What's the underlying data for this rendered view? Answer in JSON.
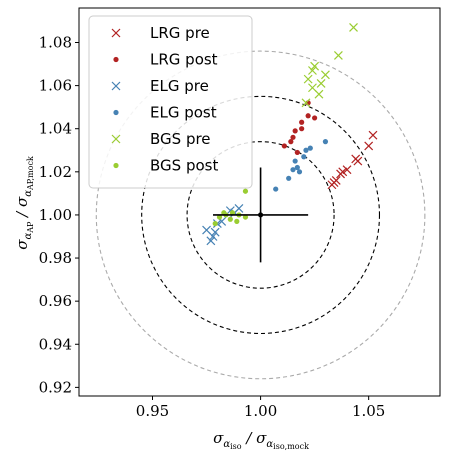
{
  "chart_data": {
    "type": "scatter",
    "xlabel": "σ_αiso / σ_αiso,mock",
    "ylabel": "σ_αAP / σ_αAP,mock",
    "xlim": [
      0.916,
      1.083
    ],
    "ylim": [
      0.916,
      1.096
    ],
    "xticks": [
      0.95,
      1.0,
      1.05
    ],
    "xtick_labels": [
      "0.95",
      "1.00",
      "1.05"
    ],
    "yticks": [
      0.92,
      0.94,
      0.96,
      0.98,
      1.0,
      1.02,
      1.04,
      1.06,
      1.08
    ],
    "ytick_labels": [
      "0.92",
      "0.94",
      "0.96",
      "0.98",
      "1.00",
      "1.02",
      "1.04",
      "1.06",
      "1.08"
    ],
    "grid": false,
    "legend_position": "top-left",
    "circles": {
      "center": [
        1.0,
        1.0
      ],
      "radii_x": [
        0.034,
        0.055,
        0.076
      ],
      "radii_y": [
        0.034,
        0.055,
        0.076
      ],
      "style": "dashed",
      "colors": [
        "#000000",
        "#000000",
        "#aaaaaa"
      ]
    },
    "errorbar": {
      "x": 1.0,
      "y": 1.0,
      "xerr": 0.022,
      "yerr": 0.022,
      "color": "#000000"
    },
    "series": [
      {
        "name": "LRG pre",
        "marker": "x",
        "color": "#b22222",
        "points": [
          [
            1.052,
            1.037
          ],
          [
            1.05,
            1.032
          ],
          [
            1.045,
            1.025
          ],
          [
            1.044,
            1.026
          ],
          [
            1.04,
            1.021
          ],
          [
            1.037,
            1.019
          ],
          [
            1.035,
            1.016
          ],
          [
            1.033,
            1.014
          ],
          [
            1.034,
            1.015
          ],
          [
            1.038,
            1.02
          ]
        ]
      },
      {
        "name": "LRG post",
        "marker": "dot",
        "color": "#b22222",
        "points": [
          [
            1.016,
            1.039
          ],
          [
            1.015,
            1.036
          ],
          [
            1.014,
            1.034
          ],
          [
            1.019,
            1.04
          ],
          [
            1.019,
            1.043
          ],
          [
            1.022,
            1.046
          ],
          [
            1.025,
            1.045
          ],
          [
            1.022,
            1.052
          ],
          [
            1.011,
            1.032
          ],
          [
            1.017,
            1.029
          ]
        ]
      },
      {
        "name": "ELG pre",
        "marker": "x",
        "color": "#4682b4",
        "points": [
          [
            0.975,
            0.993
          ],
          [
            0.979,
            0.992
          ],
          [
            0.977,
            0.988
          ],
          [
            0.978,
            0.99
          ],
          [
            0.986,
            1.002
          ],
          [
            0.988,
            1.001
          ],
          [
            0.99,
            1.003
          ],
          [
            0.982,
            0.997
          ],
          [
            0.98,
            0.996
          ]
        ]
      },
      {
        "name": "ELG post",
        "marker": "dot",
        "color": "#4682b4",
        "points": [
          [
            1.03,
            1.034
          ],
          [
            1.02,
            1.027
          ],
          [
            1.021,
            1.03
          ],
          [
            1.023,
            1.031
          ],
          [
            1.016,
            1.025
          ],
          [
            1.017,
            1.022
          ],
          [
            1.015,
            1.021
          ],
          [
            1.018,
            1.02
          ],
          [
            1.007,
            1.012
          ],
          [
            1.013,
            1.017
          ]
        ]
      },
      {
        "name": "BGS pre",
        "marker": "x",
        "color": "#9acd32",
        "points": [
          [
            1.043,
            1.087
          ],
          [
            1.036,
            1.074
          ],
          [
            1.025,
            1.069
          ],
          [
            1.024,
            1.067
          ],
          [
            1.022,
            1.063
          ],
          [
            1.028,
            1.061
          ],
          [
            1.03,
            1.065
          ],
          [
            1.024,
            1.059
          ],
          [
            1.027,
            1.056
          ],
          [
            1.021,
            1.052
          ]
        ]
      },
      {
        "name": "BGS post",
        "marker": "dot",
        "color": "#9acd32",
        "points": [
          [
            0.993,
            1.011
          ],
          [
            0.981,
            0.999
          ],
          [
            0.984,
            1.0
          ],
          [
            0.987,
            1.001
          ],
          [
            0.989,
            0.997
          ],
          [
            0.99,
            1.0
          ],
          [
            0.993,
            0.999
          ],
          [
            0.983,
            1.001
          ],
          [
            0.979,
            0.996
          ],
          [
            0.986,
            0.998
          ]
        ]
      }
    ]
  }
}
